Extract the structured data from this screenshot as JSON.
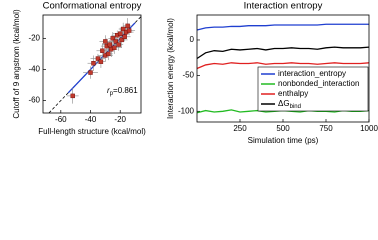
{
  "chart_data": [
    {
      "type": "scatter",
      "title": "Conformational entropy",
      "x_label": "Full-length structure (kcal/mol)",
      "y_label": "Cutoff of 9 angstrom (kcal/mol)",
      "annotation": {
        "symbol": "r",
        "subscript": "p",
        "text": "=0.861"
      },
      "color": "#c0392b",
      "error_color": "#888888",
      "fit_color": "#1f3fd0",
      "x": [
        -52,
        -40,
        -38,
        -35,
        -33,
        -32,
        -30,
        -29,
        -28,
        -27,
        -26,
        -25,
        -24,
        -23,
        -22,
        -21,
        -20,
        -19,
        -18,
        -17,
        -16,
        -15,
        -14,
        -30
      ],
      "y": [
        -57,
        -42,
        -36,
        -33,
        -35,
        -28,
        -31,
        -25,
        -30,
        -24,
        -27,
        -20,
        -26,
        -22,
        -18,
        -24,
        -17,
        -21,
        -14,
        -19,
        -16,
        -12,
        -15,
        -22
      ],
      "xerr": [
        4,
        5,
        4,
        5,
        3,
        4,
        5,
        4,
        3,
        5,
        4,
        3,
        5,
        4,
        4,
        3,
        5,
        4,
        3,
        4,
        5,
        3,
        4,
        4
      ],
      "yerr": [
        5,
        4,
        5,
        3,
        4,
        5,
        4,
        5,
        4,
        3,
        5,
        4,
        4,
        5,
        3,
        4,
        4,
        5,
        4,
        3,
        4,
        5,
        3,
        4
      ],
      "xlim": [
        -72,
        -6
      ],
      "ylim": [
        -68,
        -5
      ],
      "xticks": [
        -60,
        -40,
        -20
      ],
      "yticks": [
        -60,
        -40,
        -20
      ]
    },
    {
      "type": "line",
      "title": "Interaction entropy",
      "x_label": "Simulation time (ps)",
      "y_label": "Interaction energy (kcal/mol)",
      "x": [
        0,
        50,
        100,
        150,
        200,
        250,
        300,
        350,
        400,
        450,
        500,
        550,
        600,
        650,
        700,
        750,
        800,
        850,
        900,
        950,
        1000
      ],
      "series": [
        {
          "name": "interaction_entropy",
          "color": "#1f3fd0",
          "values": [
            14,
            17,
            18,
            18,
            19,
            19,
            20,
            20,
            20,
            21,
            21,
            21,
            21,
            21,
            21,
            22,
            22,
            22,
            22,
            22,
            22
          ]
        },
        {
          "name": "nonbonded_interaction",
          "color": "#22bb22",
          "values": [
            -102,
            -99,
            -101,
            -100,
            -98,
            -101,
            -100,
            -99,
            -101,
            -100,
            -99,
            -100,
            -101,
            -99,
            -100,
            -100,
            -101,
            -99,
            -100,
            -100,
            -99
          ]
        },
        {
          "name": "enthalpy",
          "color": "#e02020",
          "values": [
            -40,
            -35,
            -33,
            -34,
            -32,
            -33,
            -33,
            -32,
            -34,
            -33,
            -33,
            -32,
            -33,
            -33,
            -34,
            -33,
            -32,
            -33,
            -33,
            -33,
            -32
          ]
        },
        {
          "name": "ΔG",
          "subscript": "bind",
          "color": "#000000",
          "values": [
            -26,
            -18,
            -15,
            -16,
            -13,
            -14,
            -13,
            -12,
            -14,
            -12,
            -12,
            -11,
            -12,
            -12,
            -13,
            -11,
            -10,
            -11,
            -11,
            -11,
            -10
          ]
        }
      ],
      "xlim": [
        0,
        1000
      ],
      "ylim": [
        -115,
        35
      ],
      "xticks": [
        250,
        500,
        750,
        1000
      ],
      "yticks": [
        -100,
        -50,
        0
      ]
    }
  ]
}
